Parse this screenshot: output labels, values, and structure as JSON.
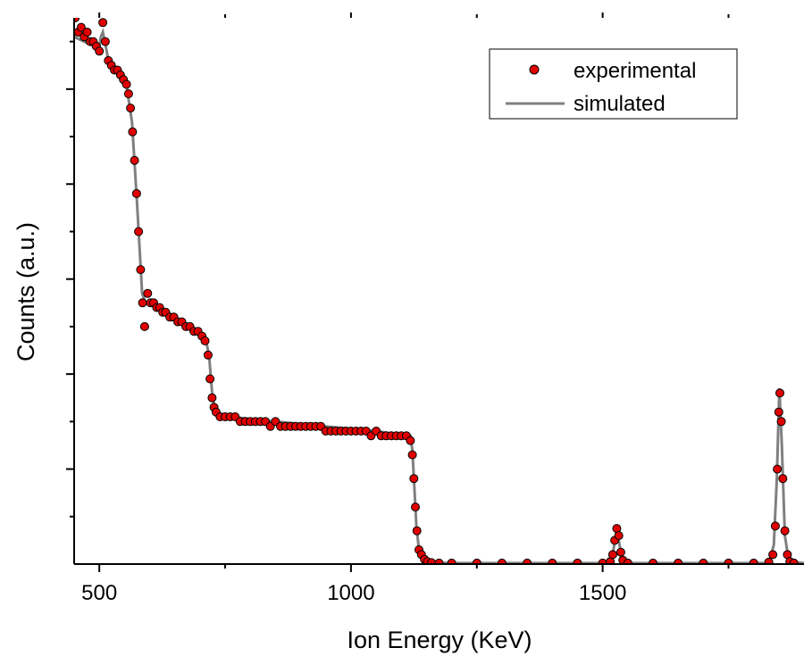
{
  "chart_data": {
    "type": "scatter",
    "title": "",
    "xlabel": "Ion Energy (KeV)",
    "ylabel": "Counts (a.u.)",
    "xlim": [
      450,
      1900
    ],
    "ylim": [
      0,
      1.15
    ],
    "x_ticks": [
      500,
      1000,
      1500
    ],
    "y_tick_labels_shown": false,
    "grid": false,
    "legend_position": "top-right",
    "series": [
      {
        "name": "experimental",
        "kind": "scatter",
        "marker_color": "#e00000",
        "marker_edge": "#000000",
        "points": [
          [
            452,
            1.15
          ],
          [
            458,
            1.12
          ],
          [
            464,
            1.13
          ],
          [
            470,
            1.11
          ],
          [
            476,
            1.12
          ],
          [
            482,
            1.1
          ],
          [
            488,
            1.1
          ],
          [
            494,
            1.09
          ],
          [
            500,
            1.08
          ],
          [
            507,
            1.14
          ],
          [
            512,
            1.1
          ],
          [
            518,
            1.06
          ],
          [
            524,
            1.05
          ],
          [
            530,
            1.04
          ],
          [
            536,
            1.04
          ],
          [
            542,
            1.03
          ],
          [
            548,
            1.02
          ],
          [
            554,
            1.01
          ],
          [
            558,
            0.99
          ],
          [
            562,
            0.96
          ],
          [
            566,
            0.91
          ],
          [
            570,
            0.85
          ],
          [
            574,
            0.78
          ],
          [
            578,
            0.7
          ],
          [
            582,
            0.62
          ],
          [
            586,
            0.55
          ],
          [
            590,
            0.5
          ],
          [
            596,
            0.57
          ],
          [
            602,
            0.55
          ],
          [
            608,
            0.55
          ],
          [
            614,
            0.54
          ],
          [
            620,
            0.54
          ],
          [
            626,
            0.53
          ],
          [
            632,
            0.53
          ],
          [
            640,
            0.52
          ],
          [
            648,
            0.52
          ],
          [
            656,
            0.51
          ],
          [
            664,
            0.51
          ],
          [
            672,
            0.5
          ],
          [
            680,
            0.5
          ],
          [
            688,
            0.49
          ],
          [
            696,
            0.49
          ],
          [
            704,
            0.48
          ],
          [
            710,
            0.47
          ],
          [
            716,
            0.44
          ],
          [
            720,
            0.39
          ],
          [
            724,
            0.35
          ],
          [
            728,
            0.33
          ],
          [
            732,
            0.32
          ],
          [
            740,
            0.31
          ],
          [
            750,
            0.31
          ],
          [
            760,
            0.31
          ],
          [
            770,
            0.31
          ],
          [
            780,
            0.3
          ],
          [
            790,
            0.3
          ],
          [
            800,
            0.3
          ],
          [
            810,
            0.3
          ],
          [
            820,
            0.3
          ],
          [
            830,
            0.3
          ],
          [
            840,
            0.29
          ],
          [
            850,
            0.3
          ],
          [
            860,
            0.29
          ],
          [
            870,
            0.29
          ],
          [
            880,
            0.29
          ],
          [
            890,
            0.29
          ],
          [
            900,
            0.29
          ],
          [
            910,
            0.29
          ],
          [
            920,
            0.29
          ],
          [
            930,
            0.29
          ],
          [
            940,
            0.29
          ],
          [
            950,
            0.28
          ],
          [
            960,
            0.28
          ],
          [
            970,
            0.28
          ],
          [
            980,
            0.28
          ],
          [
            990,
            0.28
          ],
          [
            1000,
            0.28
          ],
          [
            1010,
            0.28
          ],
          [
            1020,
            0.28
          ],
          [
            1030,
            0.28
          ],
          [
            1040,
            0.27
          ],
          [
            1050,
            0.28
          ],
          [
            1060,
            0.27
          ],
          [
            1070,
            0.27
          ],
          [
            1080,
            0.27
          ],
          [
            1090,
            0.27
          ],
          [
            1100,
            0.27
          ],
          [
            1110,
            0.27
          ],
          [
            1118,
            0.26
          ],
          [
            1122,
            0.23
          ],
          [
            1125,
            0.18
          ],
          [
            1128,
            0.12
          ],
          [
            1131,
            0.07
          ],
          [
            1135,
            0.03
          ],
          [
            1140,
            0.02
          ],
          [
            1146,
            0.01
          ],
          [
            1152,
            0.005
          ],
          [
            1160,
            0.003
          ],
          [
            1175,
            0.002
          ],
          [
            1200,
            0.002
          ],
          [
            1250,
            0.002
          ],
          [
            1300,
            0.002
          ],
          [
            1350,
            0.002
          ],
          [
            1400,
            0.002
          ],
          [
            1450,
            0.002
          ],
          [
            1500,
            0.002
          ],
          [
            1515,
            0.005
          ],
          [
            1520,
            0.02
          ],
          [
            1524,
            0.05
          ],
          [
            1528,
            0.075
          ],
          [
            1532,
            0.06
          ],
          [
            1536,
            0.025
          ],
          [
            1540,
            0.008
          ],
          [
            1550,
            0.002
          ],
          [
            1600,
            0.002
          ],
          [
            1650,
            0.002
          ],
          [
            1700,
            0.002
          ],
          [
            1750,
            0.002
          ],
          [
            1800,
            0.002
          ],
          [
            1830,
            0.004
          ],
          [
            1838,
            0.02
          ],
          [
            1843,
            0.08
          ],
          [
            1847,
            0.2
          ],
          [
            1850,
            0.32
          ],
          [
            1852,
            0.36
          ],
          [
            1855,
            0.3
          ],
          [
            1858,
            0.18
          ],
          [
            1862,
            0.07
          ],
          [
            1867,
            0.02
          ],
          [
            1872,
            0.005
          ],
          [
            1880,
            0.002
          ]
        ]
      },
      {
        "name": "simulated",
        "kind": "line",
        "line_color": "#808080",
        "points": [
          [
            450,
            1.11
          ],
          [
            470,
            1.1
          ],
          [
            490,
            1.09
          ],
          [
            500,
            1.09
          ],
          [
            503,
            1.11
          ],
          [
            507,
            1.12
          ],
          [
            511,
            1.1
          ],
          [
            520,
            1.05
          ],
          [
            540,
            1.03
          ],
          [
            555,
            1.0
          ],
          [
            565,
            0.93
          ],
          [
            575,
            0.76
          ],
          [
            585,
            0.57
          ],
          [
            592,
            0.55
          ],
          [
            600,
            0.55
          ],
          [
            640,
            0.52
          ],
          [
            680,
            0.5
          ],
          [
            710,
            0.48
          ],
          [
            718,
            0.44
          ],
          [
            725,
            0.35
          ],
          [
            732,
            0.32
          ],
          [
            760,
            0.31
          ],
          [
            850,
            0.3
          ],
          [
            950,
            0.29
          ],
          [
            1050,
            0.28
          ],
          [
            1110,
            0.27
          ],
          [
            1118,
            0.27
          ],
          [
            1122,
            0.24
          ],
          [
            1126,
            0.16
          ],
          [
            1130,
            0.08
          ],
          [
            1135,
            0.03
          ],
          [
            1145,
            0.01
          ],
          [
            1160,
            0.003
          ],
          [
            1200,
            0.002
          ],
          [
            1510,
            0.002
          ],
          [
            1520,
            0.02
          ],
          [
            1528,
            0.075
          ],
          [
            1536,
            0.025
          ],
          [
            1545,
            0.002
          ],
          [
            1830,
            0.002
          ],
          [
            1840,
            0.04
          ],
          [
            1846,
            0.18
          ],
          [
            1851,
            0.37
          ],
          [
            1856,
            0.25
          ],
          [
            1862,
            0.06
          ],
          [
            1870,
            0.005
          ],
          [
            1900,
            0.002
          ]
        ]
      }
    ]
  }
}
